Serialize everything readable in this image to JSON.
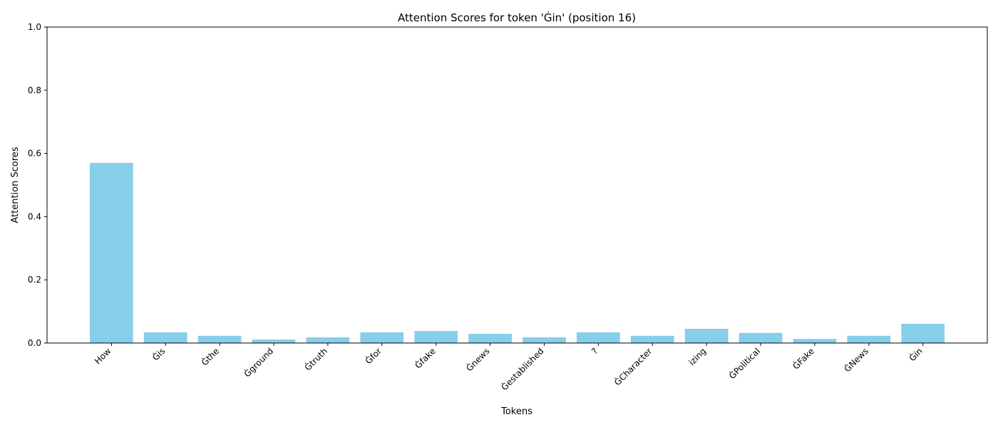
{
  "chart_data": {
    "type": "bar",
    "title": "Attention Scores for token 'Ġin' (position 16)",
    "xlabel": "Tokens",
    "ylabel": "Attention Scores",
    "ylim": [
      0,
      1.0
    ],
    "yticks": [
      "0.0",
      "0.2",
      "0.4",
      "0.6",
      "0.8",
      "1.0"
    ],
    "ytick_values": [
      0,
      0.2,
      0.4,
      0.6,
      0.8,
      1.0
    ],
    "categories": [
      "How",
      "Ġis",
      "Ġthe",
      "Ġground",
      "Ġtruth",
      "Ġfor",
      "Ġfake",
      "Ġnews",
      "Ġestablished",
      "?",
      "ĠCharacter",
      "izing",
      "ĠPolitical",
      "ĠFake",
      "ĠNews",
      "Ġin"
    ],
    "values": [
      0.57,
      0.034,
      0.023,
      0.011,
      0.018,
      0.034,
      0.038,
      0.029,
      0.018,
      0.034,
      0.023,
      0.045,
      0.032,
      0.013,
      0.023,
      0.061
    ],
    "bar_color": "#87ceeb",
    "grid": false,
    "legend": "none"
  }
}
